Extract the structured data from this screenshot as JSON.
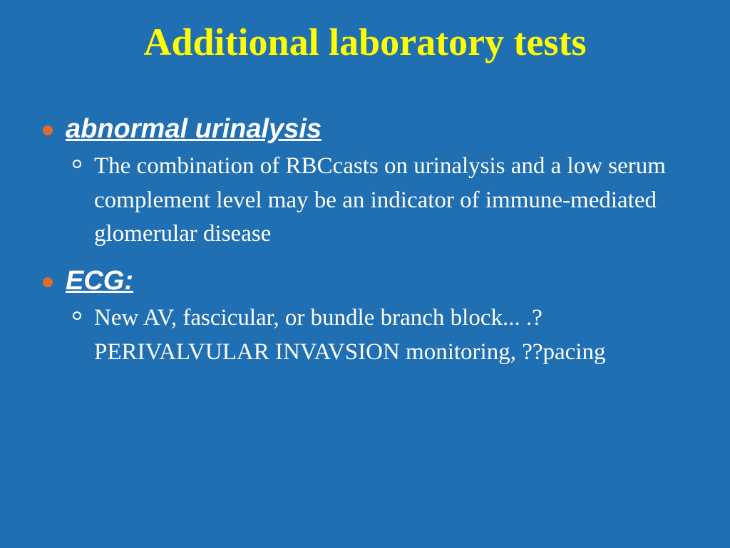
{
  "slide": {
    "title": "Additional laboratory tests",
    "background_color": "#1f6fb2",
    "title_color": "#ffff00",
    "text_color": "#ffffff",
    "bullet_filled_color": "#e26b2a",
    "items": [
      {
        "heading": "abnormal urinalysis",
        "sub": [
          "The combination of RBCcasts on urinalysis and a low serum complement level may be an indicator of immune-mediated glomerular disease"
        ]
      },
      {
        "heading": "ECG:",
        "sub": [
          "New AV, fascicular, or bundle branch block... .?PERIVALVULAR INVAVSION monitoring, ??pacing"
        ]
      }
    ]
  }
}
